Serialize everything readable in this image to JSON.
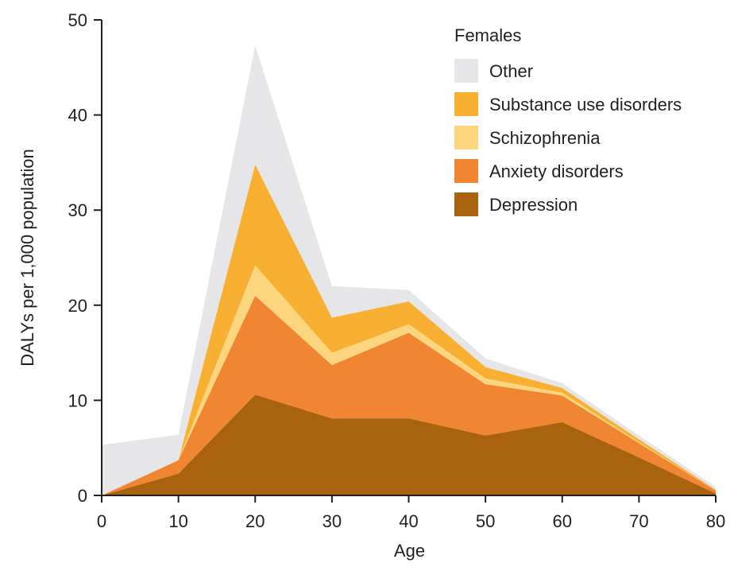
{
  "chart_data": {
    "type": "area",
    "stacked": true,
    "title": "",
    "legend_title": "Females",
    "xlabel": "Age",
    "ylabel": "DALYs per 1,000 population",
    "x": [
      0,
      10,
      20,
      30,
      40,
      50,
      60,
      70,
      80
    ],
    "xticks": [
      "0",
      "10",
      "20",
      "30",
      "40",
      "50",
      "60",
      "70",
      "80"
    ],
    "xlim": [
      0,
      80
    ],
    "yticks": [
      "0",
      "10",
      "20",
      "30",
      "40",
      "50"
    ],
    "ylim": [
      0,
      50
    ],
    "grid": false,
    "legend_position": "top-right",
    "series": [
      {
        "name": "Depression",
        "color": "#a9630f",
        "values": [
          0,
          2.3,
          10.6,
          8.1,
          8.1,
          6.3,
          7.7,
          4.0,
          0.2
        ]
      },
      {
        "name": "Anxiety disorders",
        "color": "#f08632",
        "values": [
          0,
          1.4,
          10.4,
          5.6,
          9.0,
          5.4,
          2.8,
          1.5,
          0.3
        ]
      },
      {
        "name": "Schizophrenia",
        "color": "#fdd57e",
        "values": [
          0,
          0,
          3.2,
          1.3,
          0.9,
          0.6,
          0.3,
          0.1,
          0
        ]
      },
      {
        "name": "Substance use disorders",
        "color": "#f8b032",
        "values": [
          0,
          0,
          10.6,
          3.7,
          2.4,
          1.2,
          0.5,
          0.3,
          0.1
        ]
      },
      {
        "name": "Other",
        "color": "#e6e6e8",
        "values": [
          5.3,
          2.7,
          12.5,
          3.3,
          1.2,
          0.9,
          0.5,
          0.4,
          0.3
        ]
      }
    ],
    "legend_order": [
      "Other",
      "Substance use disorders",
      "Schizophrenia",
      "Anxiety disorders",
      "Depression"
    ]
  }
}
